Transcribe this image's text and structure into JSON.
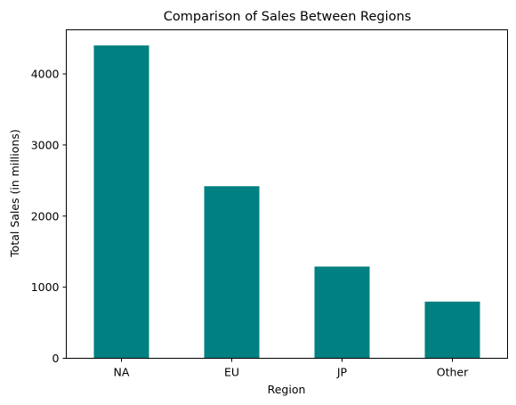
{
  "chart_data": {
    "type": "bar",
    "title": "Comparison of Sales Between Regions",
    "xlabel": "Region",
    "ylabel": "Total Sales (in millions)",
    "categories": [
      "NA",
      "EU",
      "JP",
      "Other"
    ],
    "values": [
      4400,
      2420,
      1290,
      797
    ],
    "ylim": [
      0,
      4620
    ],
    "yticks": [
      0,
      1000,
      2000,
      3000,
      4000
    ],
    "bar_color": "#008080",
    "grid": false,
    "legend": "none"
  }
}
